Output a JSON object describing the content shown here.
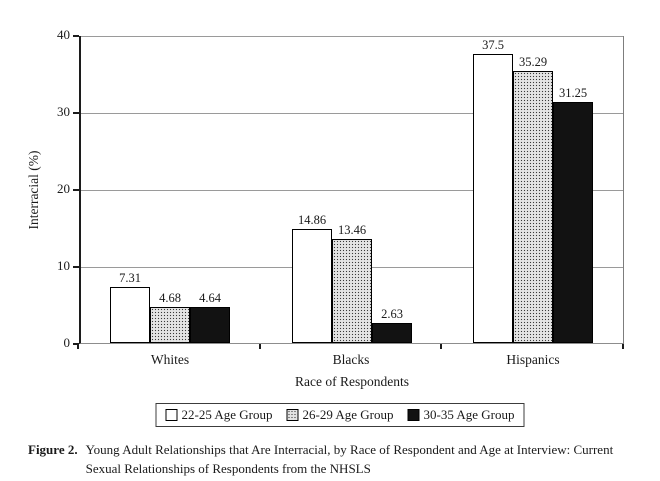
{
  "figure": {
    "caption": {
      "label": "Figure 2.",
      "lines": [
        "Young Adult Relationships that Are Interracial, by Race of Respondent and Age at Interview: Current",
        "Sexual Relationships of Respondents from the NHSLS"
      ]
    }
  },
  "chart_data": {
    "type": "bar",
    "title": "",
    "xlabel": "Race of Respondents",
    "ylabel": "Interracial (%)",
    "ylim": [
      0,
      40
    ],
    "yticks": [
      0,
      10,
      20,
      30,
      40
    ],
    "grid": "horizontal",
    "legend_position": "bottom",
    "categories": [
      "Whites",
      "Blacks",
      "Hispanics"
    ],
    "series": [
      {
        "name": "22-25 Age Group",
        "fill": "white",
        "values": [
          7.31,
          14.86,
          37.5
        ]
      },
      {
        "name": "26-29 Age Group",
        "fill": "stipple",
        "values": [
          4.68,
          13.46,
          35.29
        ]
      },
      {
        "name": "30-35 Age Group",
        "fill": "black",
        "values": [
          4.64,
          2.63,
          31.25
        ]
      }
    ],
    "value_labels": [
      [
        "7.31",
        "14.86",
        "37.5"
      ],
      [
        "4.68",
        "13.46",
        "35.29"
      ],
      [
        "4.64",
        "2.63",
        "31.25"
      ]
    ],
    "colors": {
      "bar_black": "#121212",
      "stipple_bg": "#e4e4e4",
      "stipple_dot": "#3a3a3a",
      "grid": "#9a9a9a",
      "axis": "#1c1c1c"
    }
  }
}
